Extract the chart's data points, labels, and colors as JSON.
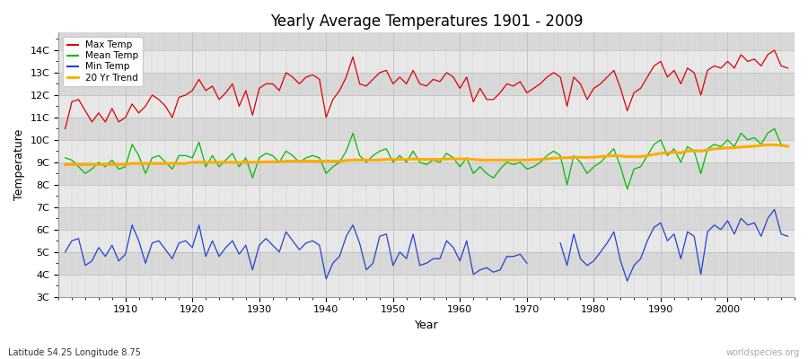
{
  "title": "Yearly Average Temperatures 1901 - 2009",
  "xlabel": "Year",
  "ylabel": "Temperature",
  "subtitle": "Latitude 54.25 Longitude 8.75",
  "watermark": "worldspecies.org",
  "years": [
    1901,
    1902,
    1903,
    1904,
    1905,
    1906,
    1907,
    1908,
    1909,
    1910,
    1911,
    1912,
    1913,
    1914,
    1915,
    1916,
    1917,
    1918,
    1919,
    1920,
    1921,
    1922,
    1923,
    1924,
    1925,
    1926,
    1927,
    1928,
    1929,
    1930,
    1931,
    1932,
    1933,
    1934,
    1935,
    1936,
    1937,
    1938,
    1939,
    1940,
    1941,
    1942,
    1943,
    1944,
    1945,
    1946,
    1947,
    1948,
    1949,
    1950,
    1951,
    1952,
    1953,
    1954,
    1955,
    1956,
    1957,
    1958,
    1959,
    1960,
    1961,
    1962,
    1963,
    1964,
    1965,
    1966,
    1967,
    1968,
    1969,
    1970,
    1971,
    1972,
    1973,
    1974,
    1975,
    1976,
    1977,
    1978,
    1979,
    1980,
    1981,
    1982,
    1983,
    1984,
    1985,
    1986,
    1987,
    1988,
    1989,
    1990,
    1991,
    1992,
    1993,
    1994,
    1995,
    1996,
    1997,
    1998,
    1999,
    2000,
    2001,
    2002,
    2003,
    2004,
    2005,
    2006,
    2007,
    2008,
    2009
  ],
  "max_temp": [
    10.5,
    11.7,
    11.8,
    11.3,
    10.8,
    11.2,
    10.8,
    11.4,
    10.8,
    11.0,
    11.6,
    11.2,
    11.5,
    12.0,
    11.8,
    11.5,
    11.0,
    11.9,
    12.0,
    12.2,
    12.7,
    12.2,
    12.4,
    11.8,
    12.1,
    12.5,
    11.5,
    12.2,
    11.1,
    12.3,
    12.5,
    12.5,
    12.2,
    13.0,
    12.8,
    12.5,
    12.8,
    12.9,
    12.7,
    11.0,
    11.8,
    12.2,
    12.8,
    13.7,
    12.5,
    12.4,
    12.7,
    13.0,
    13.1,
    12.5,
    12.8,
    12.5,
    13.1,
    12.5,
    12.4,
    12.7,
    12.6,
    13.0,
    12.8,
    12.3,
    12.8,
    11.7,
    12.3,
    11.8,
    11.8,
    12.1,
    12.5,
    12.4,
    12.6,
    12.1,
    12.3,
    12.5,
    12.8,
    13.0,
    12.8,
    11.5,
    12.8,
    12.5,
    11.8,
    12.3,
    12.5,
    12.8,
    13.1,
    12.3,
    11.3,
    12.1,
    12.3,
    12.8,
    13.3,
    13.5,
    12.8,
    13.1,
    12.5,
    13.2,
    13.0,
    12.0,
    13.1,
    13.3,
    13.2,
    13.5,
    13.2,
    13.8,
    13.5,
    13.6,
    13.3,
    13.8,
    14.0,
    13.3,
    13.2
  ],
  "mean_temp": [
    9.2,
    9.1,
    8.8,
    8.5,
    8.7,
    9.0,
    8.8,
    9.1,
    8.7,
    8.8,
    9.8,
    9.3,
    8.5,
    9.2,
    9.3,
    9.0,
    8.7,
    9.3,
    9.3,
    9.2,
    9.9,
    8.8,
    9.3,
    8.8,
    9.1,
    9.4,
    8.8,
    9.2,
    8.3,
    9.2,
    9.4,
    9.3,
    9.0,
    9.5,
    9.3,
    9.0,
    9.2,
    9.3,
    9.2,
    8.5,
    8.8,
    9.0,
    9.5,
    10.3,
    9.3,
    9.0,
    9.3,
    9.5,
    9.6,
    9.0,
    9.3,
    9.0,
    9.5,
    9.0,
    8.9,
    9.1,
    9.0,
    9.4,
    9.2,
    8.8,
    9.2,
    8.5,
    8.8,
    8.5,
    8.3,
    8.7,
    9.0,
    8.9,
    9.0,
    8.7,
    8.8,
    9.0,
    9.3,
    9.5,
    9.3,
    8.0,
    9.3,
    9.0,
    8.5,
    8.8,
    9.0,
    9.3,
    9.6,
    8.8,
    7.8,
    8.7,
    8.8,
    9.3,
    9.8,
    10.0,
    9.3,
    9.6,
    9.0,
    9.7,
    9.5,
    8.5,
    9.6,
    9.8,
    9.7,
    10.0,
    9.7,
    10.3,
    10.0,
    10.1,
    9.8,
    10.3,
    10.5,
    9.8,
    9.7
  ],
  "min_temp_seg1_years": [
    1901,
    1902,
    1903,
    1904,
    1905,
    1906,
    1907,
    1908,
    1909,
    1910,
    1911,
    1912,
    1913,
    1914,
    1915,
    1916,
    1917,
    1918,
    1919,
    1920,
    1921,
    1922,
    1923,
    1924,
    1925,
    1926,
    1927,
    1928,
    1929,
    1930,
    1931,
    1932,
    1933,
    1934,
    1935,
    1936,
    1937,
    1938,
    1939,
    1940,
    1941,
    1942,
    1943,
    1944,
    1945,
    1946,
    1947,
    1948,
    1949,
    1950,
    1951,
    1952,
    1953,
    1954,
    1955,
    1956,
    1957,
    1958,
    1959,
    1960,
    1961,
    1962,
    1963,
    1964,
    1965,
    1966,
    1967,
    1968,
    1969,
    1970
  ],
  "min_temp_seg1": [
    5.0,
    5.5,
    5.6,
    4.4,
    4.6,
    5.2,
    4.8,
    5.3,
    4.6,
    4.9,
    6.2,
    5.5,
    4.5,
    5.4,
    5.5,
    5.1,
    4.7,
    5.4,
    5.5,
    5.2,
    6.2,
    4.8,
    5.5,
    4.8,
    5.2,
    5.5,
    4.9,
    5.3,
    4.2,
    5.3,
    5.6,
    5.3,
    5.0,
    5.9,
    5.5,
    5.1,
    5.4,
    5.5,
    5.3,
    3.8,
    4.5,
    4.8,
    5.7,
    6.2,
    5.4,
    4.2,
    4.5,
    5.7,
    5.8,
    4.4,
    5.0,
    4.7,
    5.8,
    4.4,
    4.5,
    4.7,
    4.7,
    5.5,
    5.2,
    4.6,
    5.5,
    4.0,
    4.2,
    4.3,
    4.1,
    4.2,
    4.8,
    4.8,
    4.9,
    4.5
  ],
  "min_temp_seg2_years": [
    1975,
    1976,
    1977,
    1978,
    1979,
    1980,
    1981,
    1982,
    1983,
    1984,
    1985,
    1986,
    1987,
    1988,
    1989,
    1990,
    1991,
    1992,
    1993,
    1994,
    1995,
    1996,
    1997,
    1998,
    1999,
    2000,
    2001,
    2002,
    2003,
    2004,
    2005,
    2006,
    2007,
    2008,
    2009
  ],
  "min_temp_seg2": [
    5.4,
    4.4,
    5.8,
    4.7,
    4.4,
    4.6,
    5.0,
    5.4,
    5.9,
    4.6,
    3.7,
    4.4,
    4.7,
    5.5,
    6.1,
    6.3,
    5.5,
    5.8,
    4.7,
    5.9,
    5.7,
    4.0,
    5.9,
    6.2,
    6.0,
    6.4,
    5.8,
    6.5,
    6.2,
    6.3,
    5.7,
    6.5,
    6.9,
    5.8,
    5.7
  ],
  "trend_20yr": [
    8.9,
    8.9,
    8.9,
    8.9,
    8.9,
    8.9,
    8.9,
    8.9,
    8.9,
    8.9,
    8.95,
    8.95,
    8.95,
    8.95,
    8.95,
    8.95,
    8.95,
    8.95,
    8.95,
    9.0,
    9.0,
    9.0,
    9.0,
    9.0,
    9.0,
    9.0,
    9.0,
    9.0,
    9.0,
    9.0,
    9.02,
    9.02,
    9.02,
    9.05,
    9.05,
    9.05,
    9.05,
    9.05,
    9.05,
    9.05,
    9.05,
    9.05,
    9.08,
    9.1,
    9.1,
    9.1,
    9.1,
    9.1,
    9.13,
    9.13,
    9.13,
    9.13,
    9.15,
    9.13,
    9.13,
    9.13,
    9.13,
    9.15,
    9.15,
    9.15,
    9.15,
    9.13,
    9.1,
    9.1,
    9.1,
    9.1,
    9.1,
    9.1,
    9.1,
    9.1,
    9.12,
    9.13,
    9.15,
    9.18,
    9.2,
    9.2,
    9.22,
    9.22,
    9.22,
    9.23,
    9.25,
    9.28,
    9.3,
    9.28,
    9.25,
    9.25,
    9.25,
    9.3,
    9.35,
    9.4,
    9.42,
    9.45,
    9.42,
    9.5,
    9.52,
    9.5,
    9.55,
    9.6,
    9.62,
    9.65,
    9.65,
    9.68,
    9.7,
    9.72,
    9.75,
    9.78,
    9.78,
    9.75,
    9.72
  ],
  "fig_bg_color": "#ffffff",
  "plot_bg_color": "#e0e0e0",
  "band_color_light": "#e8e8e8",
  "band_color_dark": "#d8d8d8",
  "max_color": "#dd0000",
  "mean_color": "#00bb00",
  "min_color": "#2244cc",
  "trend_color": "#ffaa00",
  "ylim": [
    3.0,
    14.8
  ],
  "xlim": [
    1900,
    2010
  ],
  "yticks": [
    3,
    4,
    5,
    6,
    7,
    8,
    9,
    10,
    11,
    12,
    13,
    14
  ],
  "ytick_labels": [
    "3C",
    "4C",
    "5C",
    "6C",
    "7C",
    "8C",
    "9C",
    "10C",
    "11C",
    "12C",
    "13C",
    "14C"
  ],
  "xticks": [
    1910,
    1920,
    1930,
    1940,
    1950,
    1960,
    1970,
    1980,
    1990,
    2000
  ],
  "band_ranges": [
    [
      3,
      4
    ],
    [
      4,
      5
    ],
    [
      5,
      6
    ],
    [
      6,
      7
    ],
    [
      7,
      8
    ],
    [
      8,
      9
    ],
    [
      9,
      10
    ],
    [
      10,
      11
    ],
    [
      11,
      12
    ],
    [
      12,
      13
    ],
    [
      13,
      14
    ],
    [
      14,
      15
    ]
  ]
}
